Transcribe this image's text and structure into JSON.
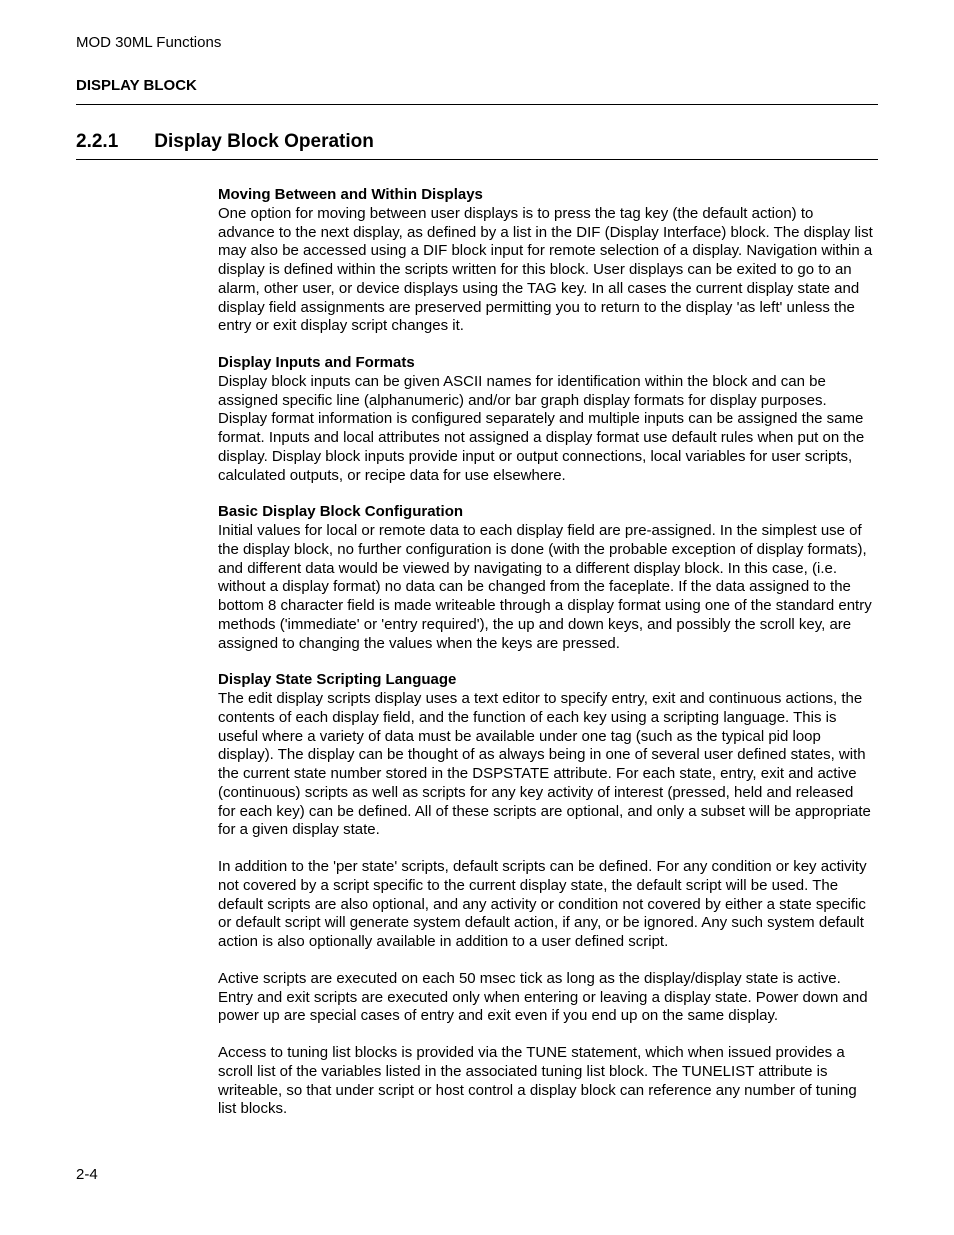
{
  "colors": {
    "background": "#ffffff",
    "text": "#000000",
    "rule": "#000000"
  },
  "typography": {
    "body_family": "Arial, Helvetica, sans-serif",
    "body_size_pt": 11,
    "heading_size_pt": 14,
    "line_height": 1.25
  },
  "header": {
    "running_title": "MOD 30ML Functions",
    "section_label": "DISPLAY BLOCK"
  },
  "section": {
    "number": "2.2.1",
    "title": "Display Block Operation"
  },
  "blocks": [
    {
      "heading": "Moving Between and Within Displays",
      "body": "One option for moving between user displays is to press the tag key (the default action) to advance to the next display, as defined by a list in the DIF (Display Interface) block. The display list may also be accessed using a DIF block input for remote selection of a display. Navigation within a display is defined within the scripts written for this block. User displays can be exited to go to an alarm, other user, or device displays using the TAG key.  In all cases the current display state and display field assignments are preserved permitting you to return to the display 'as left' unless the entry or exit display script changes it."
    },
    {
      "heading": "Display Inputs and Formats",
      "body": "Display block inputs can be given ASCII names for identification within the block and can be assigned specific line (alphanumeric) and/or bar graph display formats for display purposes. Display format information is configured separately and multiple inputs can be assigned the same format. Inputs and local attributes not assigned a display format use default rules when put on the display. Display block inputs provide input or output connections, local variables for user scripts, calculated outputs, or recipe data for use elsewhere."
    },
    {
      "heading": "Basic Display Block Configuration",
      "body": "Initial values for local or remote data to each display field are pre-assigned. In the simplest use of the display block, no further configuration is done (with the probable exception of display formats), and different data would be viewed by navigating to a different display block. In this case, (i.e. without a display format) no data can be changed from the faceplate. If the data assigned to the bottom 8 character field is made writeable through a display format using one of the standard entry methods ('immediate' or 'entry required'), the up and down keys, and possibly the scroll key, are assigned to changing the values when the keys are pressed."
    },
    {
      "heading": "Display State Scripting Language",
      "body": "The edit display scripts display uses a text editor to specify entry, exit and continuous actions, the contents of each display field, and the function of each key using a scripting language. This is useful where a variety of data must be available under one tag (such as the typical pid loop display). The display can be thought of as always being in one of several user defined states, with the current state number stored in the DSPSTATE attribute. For each state, entry, exit and active (continuous) scripts as well as scripts for any key activity of interest (pressed, held and released for each key) can be defined. All of these scripts are optional, and only a subset will be appropriate for a given display state."
    },
    {
      "heading": "",
      "body": "In addition to the 'per state' scripts, default scripts can be defined. For any condition or key activity not covered by a script specific to the current display state, the default script will be used. The default scripts are also optional, and any activity or condition not covered by either a state specific or default script will generate system default action, if any, or be ignored. Any such system default action is also optionally available in addition to a user defined script."
    },
    {
      "heading": "",
      "body": "Active scripts are executed on each 50 msec tick as long as the display/display state is active. Entry and exit scripts are executed only when entering or leaving a display state. Power down and power up are special cases of entry and exit even if you end up on the same display."
    },
    {
      "heading": "",
      "body": "Access to tuning list blocks is provided via the TUNE statement, which when issued provides a scroll list of the variables listed in the associated tuning list block. The TUNELIST attribute is writeable, so that under script or host control a display block can reference any number of tuning list blocks."
    }
  ],
  "footer": {
    "page_number": "2-4"
  }
}
